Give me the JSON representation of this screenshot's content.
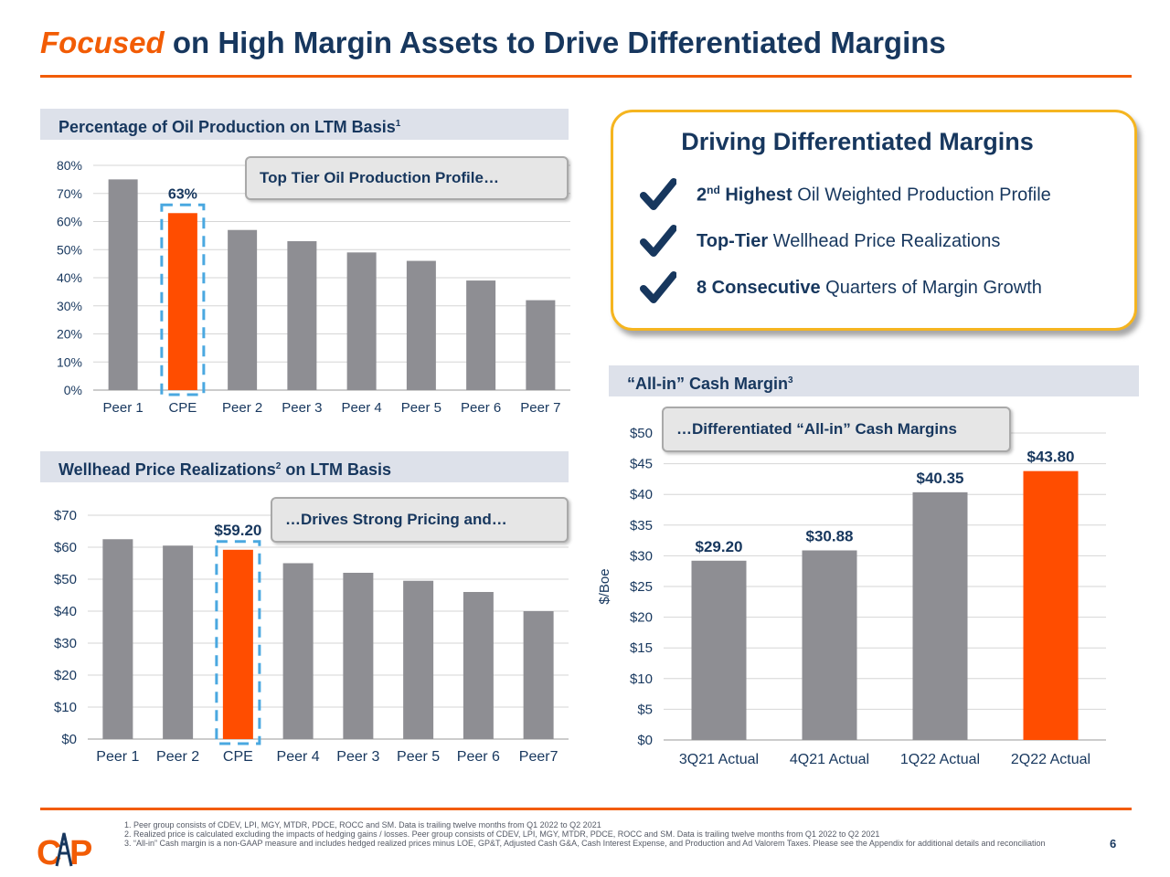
{
  "title": {
    "highlight": "Focused",
    "rest": " on High Margin Assets to Drive Differentiated Margins"
  },
  "colors": {
    "accent": "#f25c05",
    "navy": "#17375e",
    "gray_bar": "#8e8e93",
    "highlight_bar": "#ff4d00",
    "dash": "#4aa8e0",
    "box_border": "#f5b520"
  },
  "oil_section": {
    "header": "Percentage of Oil Production on LTM Basis",
    "header_sup": "1",
    "callout": "Top Tier Oil Production Profile…"
  },
  "price_section": {
    "header_a": "Wellhead Price Realizations",
    "header_sup": "2",
    "header_b": " on LTM Basis",
    "callout": "…Drives Strong Pricing and…"
  },
  "margin_section": {
    "header": "“All-in” Cash Margin",
    "header_sup": "3",
    "callout": "…Differentiated “All-in” Cash Margins"
  },
  "highlights": {
    "title": "Driving Differentiated Margins",
    "items": [
      {
        "bold_a": "2",
        "sup": "nd",
        "bold_b": " Highest",
        "rest": " Oil Weighted Production Profile"
      },
      {
        "bold_a": "Top-Tier",
        "sup": "",
        "bold_b": "",
        "rest": " Wellhead Price Realizations"
      },
      {
        "bold_a": "8 Consecutive",
        "sup": "",
        "bold_b": "",
        "rest": " Quarters of Margin Growth"
      }
    ]
  },
  "chart_data": [
    {
      "id": "oil",
      "type": "bar",
      "title": "Percentage of Oil Production on LTM Basis",
      "categories": [
        "Peer 1",
        "CPE",
        "Peer 2",
        "Peer 3",
        "Peer 4",
        "Peer 5",
        "Peer 6",
        "Peer 7"
      ],
      "values": [
        75,
        63,
        57,
        53,
        49,
        46,
        39,
        32
      ],
      "highlight_index": 1,
      "data_labels": {
        "1": "63%"
      },
      "ylim": [
        0,
        80
      ],
      "yticks": [
        0,
        10,
        20,
        30,
        40,
        50,
        60,
        70,
        80
      ],
      "ytick_labels": [
        "0%",
        "10%",
        "20%",
        "30%",
        "40%",
        "50%",
        "60%",
        "70%",
        "80%"
      ],
      "xlabel": "",
      "ylabel": ""
    },
    {
      "id": "price",
      "type": "bar",
      "title": "Wellhead Price Realizations on LTM Basis",
      "categories": [
        "Peer 1",
        "Peer 2",
        "CPE",
        "Peer 4",
        "Peer 3",
        "Peer 5",
        "Peer 6",
        "Peer7"
      ],
      "values": [
        62.5,
        60.5,
        59.2,
        55,
        52,
        49.5,
        46,
        40
      ],
      "highlight_index": 2,
      "data_labels": {
        "2": "$59.20"
      },
      "ylim": [
        0,
        70
      ],
      "yticks": [
        0,
        10,
        20,
        30,
        40,
        50,
        60,
        70
      ],
      "ytick_labels": [
        "$0",
        "$10",
        "$20",
        "$30",
        "$40",
        "$50",
        "$60",
        "$70"
      ],
      "xlabel": "",
      "ylabel": ""
    },
    {
      "id": "margin",
      "type": "bar",
      "title": "“All-in” Cash Margin",
      "categories": [
        "3Q21 Actual",
        "4Q21 Actual",
        "1Q22 Actual",
        "2Q22 Actual"
      ],
      "values": [
        29.2,
        30.88,
        40.35,
        43.8
      ],
      "highlight_index": 3,
      "data_labels": {
        "0": "$29.20",
        "1": "$30.88",
        "2": "$40.35",
        "3": "$43.80"
      },
      "ylim": [
        0,
        50
      ],
      "yticks": [
        0,
        5,
        10,
        15,
        20,
        25,
        30,
        35,
        40,
        45,
        50
      ],
      "ytick_labels": [
        "$0",
        "$5",
        "$10",
        "$15",
        "$20",
        "$25",
        "$30",
        "$35",
        "$40",
        "$45",
        "$50"
      ],
      "xlabel": "",
      "ylabel": "$/Boe"
    }
  ],
  "footnotes": [
    "Peer group consists of CDEV, LPI, MGY, MTDR, PDCE, ROCC and SM. Data is trailing twelve months from Q1 2022 to Q2 2021",
    "Realized price is calculated excluding the impacts of hedging gains / losses. Peer group consists of CDEV, LPI, MGY, MTDR, PDCE, ROCC and SM.  Data is trailing twelve months from Q1 2022 to Q2 2021",
    "“All-in” Cash margin is a non-GAAP measure and includes hedged realized prices minus LOE, GP&T, Adjusted Cash G&A, Cash Interest Expense, and Production and Ad Valorem Taxes.  Please see the Appendix for additional details and reconciliation"
  ],
  "page_number": "6",
  "logo": {
    "text": "CAP"
  }
}
